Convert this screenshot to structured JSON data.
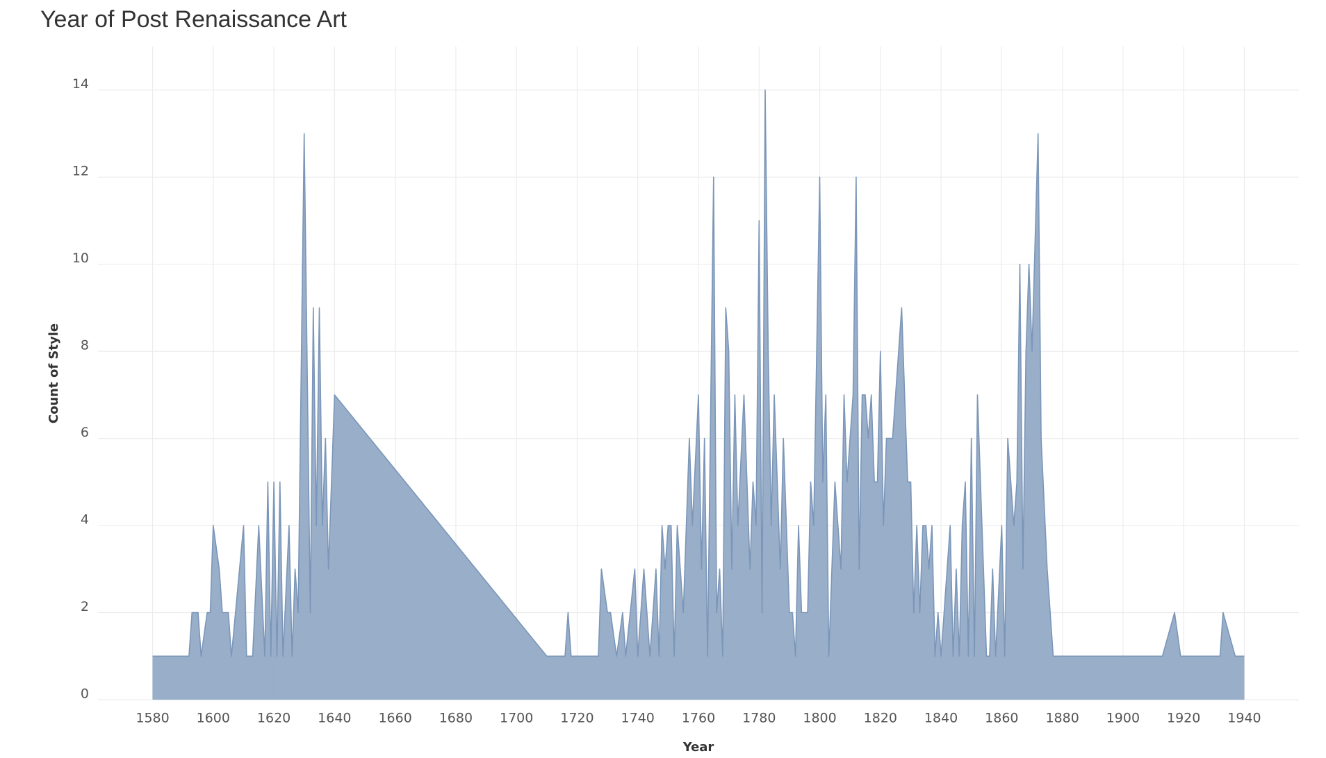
{
  "chart_data": {
    "type": "area",
    "title": "Year of Post Renaissance Art",
    "x_label": "Year",
    "y_label": "Count of Style",
    "color": "#7b96b8",
    "fill": "#93aac6",
    "grid": true,
    "xlim": [
      1562,
      1958
    ],
    "xticks": [
      1580,
      1600,
      1620,
      1640,
      1660,
      1680,
      1700,
      1720,
      1740,
      1760,
      1780,
      1800,
      1820,
      1840,
      1860,
      1880,
      1900,
      1920,
      1940
    ],
    "ylim": [
      0,
      15
    ],
    "yticks": [
      0,
      2,
      4,
      6,
      8,
      10,
      12,
      14
    ],
    "x": [
      1580,
      1592,
      1593,
      1595,
      1596,
      1598,
      1599,
      1600,
      1602,
      1603,
      1605,
      1606,
      1610,
      1611,
      1613,
      1615,
      1617,
      1618,
      1619,
      1620,
      1621,
      1622,
      1623,
      1625,
      1626,
      1627,
      1628,
      1630,
      1632,
      1633,
      1634,
      1635,
      1636,
      1637,
      1638,
      1640,
      1710,
      1716,
      1717,
      1718,
      1727,
      1728,
      1730,
      1731,
      1733,
      1735,
      1736,
      1739,
      1740,
      1742,
      1744,
      1746,
      1747,
      1748,
      1749,
      1750,
      1751,
      1752,
      1753,
      1755,
      1757,
      1758,
      1760,
      1761,
      1762,
      1763,
      1765,
      1766,
      1767,
      1768,
      1769,
      1770,
      1771,
      1772,
      1773,
      1775,
      1777,
      1778,
      1779,
      1780,
      1781,
      1782,
      1783,
      1784,
      1785,
      1787,
      1788,
      1790,
      1791,
      1792,
      1793,
      1794,
      1796,
      1797,
      1798,
      1800,
      1801,
      1802,
      1803,
      1805,
      1807,
      1808,
      1809,
      1811,
      1812,
      1813,
      1814,
      1815,
      1816,
      1817,
      1818,
      1819,
      1820,
      1821,
      1822,
      1824,
      1827,
      1828,
      1829,
      1830,
      1831,
      1832,
      1833,
      1834,
      1835,
      1836,
      1837,
      1838,
      1839,
      1840,
      1843,
      1844,
      1845,
      1846,
      1847,
      1848,
      1849,
      1850,
      1851,
      1852,
      1853,
      1855,
      1856,
      1857,
      1858,
      1860,
      1861,
      1862,
      1864,
      1865,
      1866,
      1867,
      1868,
      1869,
      1870,
      1872,
      1873,
      1875,
      1877,
      1913,
      1917,
      1919,
      1932,
      1933,
      1937,
      1940
    ],
    "values": [
      1,
      1,
      2,
      2,
      1,
      2,
      2,
      4,
      3,
      2,
      2,
      1,
      4,
      1,
      1,
      4,
      1,
      5,
      1,
      5,
      1,
      5,
      1,
      4,
      1,
      3,
      2,
      13,
      2,
      9,
      4,
      9,
      4,
      6,
      3,
      7,
      1,
      1,
      2,
      1,
      1,
      3,
      2,
      2,
      1,
      2,
      1,
      3,
      1,
      3,
      1,
      3,
      1,
      4,
      3,
      4,
      4,
      1,
      4,
      2,
      6,
      4,
      7,
      3,
      6,
      1,
      12,
      2,
      3,
      1,
      9,
      8,
      3,
      7,
      4,
      7,
      3,
      5,
      4,
      11,
      2,
      14,
      8,
      4,
      7,
      3,
      6,
      2,
      2,
      1,
      4,
      2,
      2,
      5,
      4,
      12,
      5,
      7,
      1,
      5,
      3,
      7,
      5,
      7,
      12,
      3,
      7,
      7,
      6,
      7,
      5,
      5,
      8,
      4,
      6,
      6,
      9,
      7,
      5,
      5,
      2,
      4,
      2,
      4,
      4,
      3,
      4,
      1,
      2,
      1,
      4,
      1,
      3,
      1,
      4,
      5,
      1,
      6,
      1,
      7,
      5,
      1,
      1,
      3,
      1,
      4,
      1,
      6,
      4,
      5,
      10,
      3,
      8,
      10,
      8,
      13,
      6,
      3,
      1,
      1,
      2,
      1,
      1,
      2,
      1,
      1
    ]
  }
}
